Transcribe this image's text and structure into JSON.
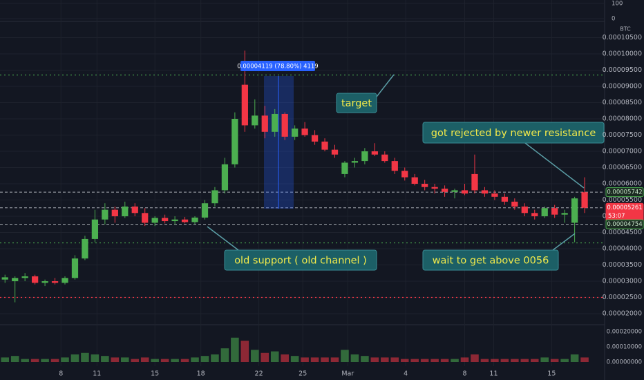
{
  "chart_data": {
    "type": "candlestick",
    "unit": "BTC",
    "up_color": "#4caf50",
    "down_color": "#f23645",
    "open": [
      3.05e-05,
      3e-05,
      3.1e-05,
      3.15e-05,
      2.95e-05,
      3e-05,
      2.95e-05,
      3.1e-05,
      3.7e-05,
      4.3e-05,
      4.9e-05,
      5.2e-05,
      5e-05,
      5.3e-05,
      5.1e-05,
      4.8e-05,
      4.95e-05,
      4.85e-05,
      4.9e-05,
      4.82e-05,
      4.96e-05,
      5.4e-05,
      5.8e-05,
      6.6e-05,
      9.05e-05,
      7.8e-05,
      8.1e-05,
      7.6e-05,
      8.15e-05,
      7.45e-05,
      7.7e-05,
      7.5e-05,
      7.3e-05,
      7.05e-05,
      6.3e-05,
      6.65e-05,
      6.7e-05,
      7e-05,
      6.9e-05,
      6.7e-05,
      6.4e-05,
      6.2e-05,
      6e-05,
      5.9e-05,
      5.85e-05,
      5.75e-05,
      5.8e-05,
      6.3e-05,
      5.8e-05,
      5.7e-05,
      5.6e-05,
      5.45e-05,
      5.3e-05,
      5.1e-05,
      5e-05,
      5.25e-05,
      5.05e-05,
      4.8e-05,
      5.74e-05
    ],
    "high": [
      3.2e-05,
      3.15e-05,
      3.25e-05,
      3.2e-05,
      3.05e-05,
      3.1e-05,
      3.15e-05,
      3.8e-05,
      4.4e-05,
      5.2e-05,
      5.4e-05,
      5.3e-05,
      5.45e-05,
      5.4e-05,
      5.25e-05,
      5e-05,
      5.05e-05,
      5e-05,
      4.98e-05,
      5e-05,
      5.5e-05,
      5.9e-05,
      6.8e-05,
      8.2e-05,
      0.000101,
      8.6e-05,
      8.4e-05,
      8.3e-05,
      8.2e-05,
      7.8e-05,
      7.9e-05,
      7.65e-05,
      7.4e-05,
      7.2e-05,
      6.7e-05,
      6.8e-05,
      7.1e-05,
      7.25e-05,
      7e-05,
      6.8e-05,
      6.5e-05,
      6.3e-05,
      6.12e-05,
      6e-05,
      5.95e-05,
      5.85e-05,
      6e-05,
      6.9e-05,
      5.9e-05,
      5.8e-05,
      5.7e-05,
      5.55e-05,
      5.4e-05,
      5.2e-05,
      5.3e-05,
      5.35e-05,
      5.2e-05,
      5.6e-05,
      6.2e-05
    ],
    "low": [
      2.95e-05,
      2.35e-05,
      3e-05,
      2.9e-05,
      2.85e-05,
      2.9e-05,
      2.9e-05,
      3.05e-05,
      3.65e-05,
      4.2e-05,
      4.75e-05,
      4.8e-05,
      4.95e-05,
      5e-05,
      4.7e-05,
      4.7e-05,
      4.78e-05,
      4.75e-05,
      4.78e-05,
      4.76e-05,
      4.9e-05,
      5.3e-05,
      5.7e-05,
      6.5e-05,
      7.6e-05,
      7.7e-05,
      7.4e-05,
      7.45e-05,
      7.35e-05,
      7.35e-05,
      7.45e-05,
      7.2e-05,
      7e-05,
      6.8e-05,
      6.2e-05,
      6.5e-05,
      6.6e-05,
      6.85e-05,
      6.65e-05,
      6.3e-05,
      6.1e-05,
      5.95e-05,
      5.8e-05,
      5.7e-05,
      5.6e-05,
      5.55e-05,
      5.65e-05,
      5.7e-05,
      5.6e-05,
      5.5e-05,
      5.35e-05,
      5.2e-05,
      5e-05,
      4.9e-05,
      4.95e-05,
      4.95e-05,
      4.8e-05,
      4.2e-05,
      5.1e-05
    ],
    "close": [
      3.12e-05,
      3.1e-05,
      3.15e-05,
      2.95e-05,
      3e-05,
      2.95e-05,
      3.1e-05,
      3.7e-05,
      4.3e-05,
      4.9e-05,
      5.2e-05,
      5e-05,
      5.3e-05,
      5.1e-05,
      4.8e-05,
      4.95e-05,
      4.85e-05,
      4.9e-05,
      4.82e-05,
      4.96e-05,
      5.4e-05,
      5.8e-05,
      6.6e-05,
      8e-05,
      7.8e-05,
      8.1e-05,
      7.6e-05,
      8.15e-05,
      7.45e-05,
      7.7e-05,
      7.5e-05,
      7.3e-05,
      7.05e-05,
      6.9e-05,
      6.65e-05,
      6.7e-05,
      7e-05,
      6.9e-05,
      6.7e-05,
      6.4e-05,
      6.2e-05,
      6e-05,
      5.9e-05,
      5.85e-05,
      5.75e-05,
      5.8e-05,
      5.7e-05,
      5.8e-05,
      5.7e-05,
      5.6e-05,
      5.45e-05,
      5.3e-05,
      5.1e-05,
      5e-05,
      5.25e-05,
      5.05e-05,
      5.1e-05,
      5.55e-05,
      5.26e-05
    ],
    "volume": [
      3e-05,
      4e-05,
      2e-05,
      2e-05,
      2e-05,
      2e-05,
      3e-05,
      5e-05,
      6e-05,
      5e-05,
      4e-05,
      3e-05,
      3e-05,
      2e-05,
      3e-05,
      2e-05,
      2e-05,
      2e-05,
      2e-05,
      3e-05,
      4e-05,
      5e-05,
      9e-05,
      0.00016,
      0.00014,
      8e-05,
      6e-05,
      7e-05,
      5e-05,
      4e-05,
      3e-05,
      3e-05,
      3e-05,
      3e-05,
      8e-05,
      5e-05,
      4e-05,
      3e-05,
      3e-05,
      3e-05,
      2e-05,
      2e-05,
      2e-05,
      2e-05,
      2e-05,
      2e-05,
      3e-05,
      5e-05,
      2e-05,
      2e-05,
      2e-05,
      2e-05,
      2e-05,
      2e-05,
      3e-05,
      2e-05,
      2e-05,
      5e-05,
      3e-05
    ],
    "xlim": [
      0,
      60.5
    ],
    "xticks": [
      {
        "value": 6.1,
        "label": "8"
      },
      {
        "value": 9.7,
        "label": "11"
      },
      {
        "value": 15.5,
        "label": "15"
      },
      {
        "value": 20.1,
        "label": "18"
      },
      {
        "value": 25.9,
        "label": "22"
      },
      {
        "value": 30.3,
        "label": "25"
      },
      {
        "value": 34.8,
        "label": "Mar"
      },
      {
        "value": 40.6,
        "label": "4"
      },
      {
        "value": 46.5,
        "label": "8"
      },
      {
        "value": 49.4,
        "label": "11"
      },
      {
        "value": 55.2,
        "label": "15"
      }
    ],
    "ylim": [
      1.66e-05,
      0.00011
    ],
    "yticks": [
      {
        "value": 2e-05,
        "label": "0.00002000"
      },
      {
        "value": 2.5e-05,
        "label": "0.00002500"
      },
      {
        "value": 3e-05,
        "label": "0.00003000"
      },
      {
        "value": 3.5e-05,
        "label": "0.00003500"
      },
      {
        "value": 4e-05,
        "label": "0.00004000"
      },
      {
        "value": 4.5e-05,
        "label": "0.00004500"
      },
      {
        "value": 5e-05,
        "label": "0.00005000"
      },
      {
        "value": 5.5e-05,
        "label": "0.00005500"
      },
      {
        "value": 6e-05,
        "label": "0.00006000"
      },
      {
        "value": 6.5e-05,
        "label": "0.00006500"
      },
      {
        "value": 7e-05,
        "label": "0.00007000"
      },
      {
        "value": 7.5e-05,
        "label": "0.00007500"
      },
      {
        "value": 8e-05,
        "label": "0.00008000"
      },
      {
        "value": 8.5e-05,
        "label": "0.00008500"
      },
      {
        "value": 9e-05,
        "label": "0.00009000"
      },
      {
        "value": 9.5e-05,
        "label": "0.00009500"
      },
      {
        "value": 0.0001,
        "label": "0.00010000"
      },
      {
        "value": 0.000105,
        "label": "0.00010500"
      }
    ],
    "volume_ylim": [
      0,
      0.000245
    ],
    "volume_yticks": [
      {
        "value": 0,
        "label": "0.00000000"
      },
      {
        "value": 0.0001,
        "label": "0.00010000"
      },
      {
        "value": 0.0002,
        "label": "0.00020000"
      }
    ],
    "indicator_ylim": [
      0,
      100
    ],
    "indicator_yticks": [
      0,
      100
    ],
    "grid": true,
    "levels": [
      {
        "value": 9.35e-05,
        "color": "#4caf50"
      },
      {
        "value": 4.18e-05,
        "color": "#4caf50"
      },
      {
        "value": 2.5e-05,
        "color": "#f23645"
      }
    ],
    "price_labels": [
      {
        "value": 5.742e-05,
        "label": "0.00005742",
        "color": "#4caf50"
      },
      {
        "value": 5.261e-05,
        "label": "0.00005261",
        "color": "#f23645"
      },
      {
        "value": 4.754e-05,
        "label": "0.00004754",
        "color": "#4caf50"
      }
    ],
    "countdown": "53:07",
    "measure_label": "0.00004119 (78.80%) 4119",
    "annotations": [
      {
        "text": "target"
      },
      {
        "text": "got rejected by newer resistance"
      },
      {
        "text": "old support ( old channel )"
      },
      {
        "text": "wait to get above 0056"
      }
    ]
  }
}
